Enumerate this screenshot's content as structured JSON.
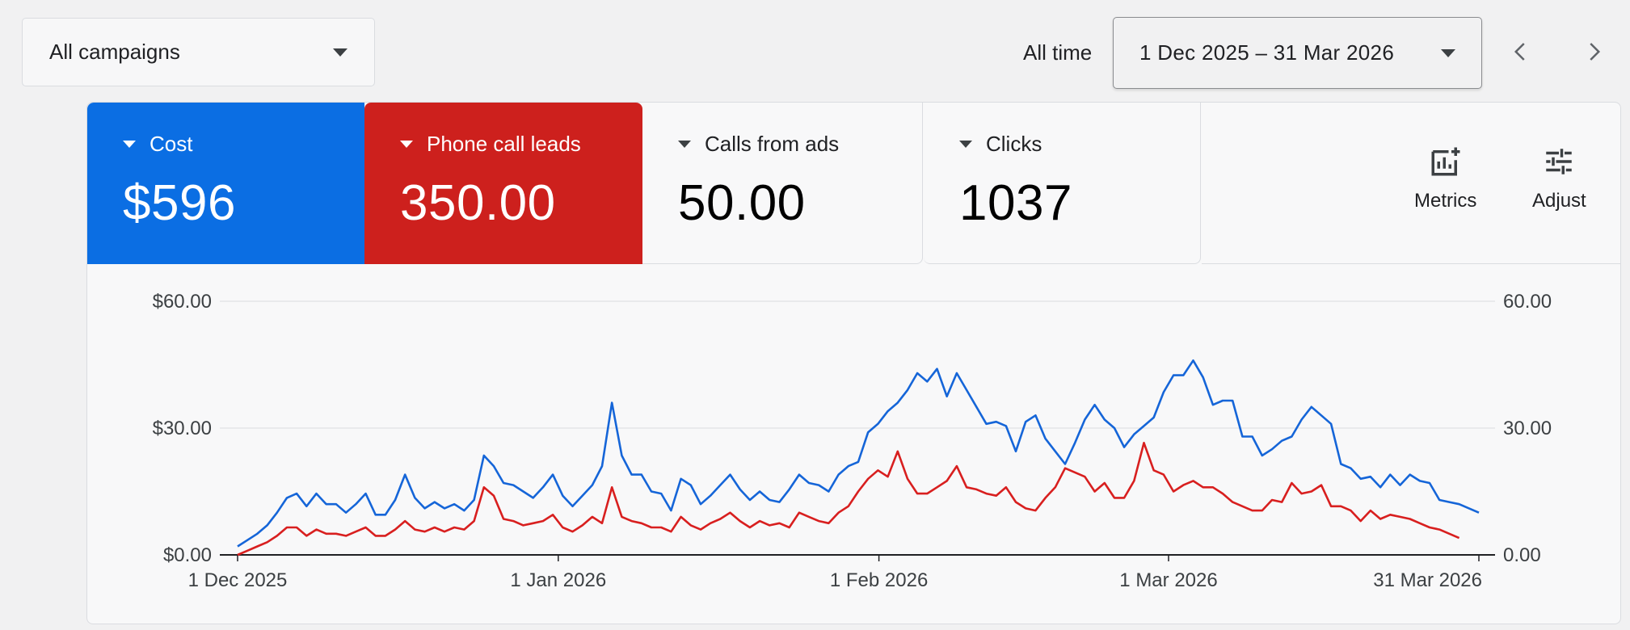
{
  "toolbar": {
    "campaign_filter": "All campaigns",
    "date_preset": "All time",
    "date_range": "1 Dec 2025 – 31 Mar 2026",
    "prev_icon": "chevron-left-icon",
    "next_icon": "chevron-right-icon"
  },
  "tiles": [
    {
      "label": "Cost",
      "value": "$596",
      "color": "#0b6ee3"
    },
    {
      "label": "Phone call leads",
      "value": "350.00",
      "color": "#cd201d"
    },
    {
      "label": "Calls from ads",
      "value": "50.00"
    },
    {
      "label": "Clicks",
      "value": "1037"
    }
  ],
  "tools": {
    "metrics_label": "Metrics",
    "metrics_icon": "add-chart-icon",
    "adjust_label": "Adjust",
    "adjust_icon": "tune-icon",
    "more_icon": "more-vert-icon"
  },
  "chart_data": {
    "type": "line",
    "x_labels": [
      "1 Dec 2025",
      "1 Jan 2026",
      "1 Feb 2026",
      "1 Mar 2026",
      "31 Mar 2026"
    ],
    "y_left_ticks": [
      "$0.00",
      "$30.00",
      "$60.00"
    ],
    "y_right_ticks": [
      "0.00",
      "30.00",
      "60.00"
    ],
    "ylim": [
      0,
      60
    ],
    "grid": true,
    "series": [
      {
        "color": "#1565d8",
        "values": [
          2,
          3.5,
          5,
          7,
          10,
          13.5,
          14.5,
          11.5,
          14.5,
          12,
          12,
          10,
          12,
          14.5,
          9.5,
          9.5,
          13,
          19,
          13.5,
          11,
          12.5,
          11,
          12,
          10.5,
          13,
          23.5,
          21,
          17,
          16.5,
          15,
          13.5,
          16,
          19,
          14,
          11.5,
          14,
          16.5,
          21,
          36,
          23.5,
          19,
          19,
          15,
          14.5,
          10.5,
          18,
          16.5,
          12,
          14,
          16.5,
          19,
          15.5,
          13,
          15,
          13,
          12.5,
          15.5,
          19,
          17,
          16.5,
          15,
          19,
          21,
          22,
          29,
          31,
          34,
          36,
          39,
          43,
          41,
          44,
          37.5,
          43,
          39,
          35,
          31,
          31.5,
          30.5,
          24.5,
          31.5,
          33,
          27.5,
          24.5,
          21.5,
          26.5,
          32,
          35.5,
          32,
          30,
          25.5,
          28.5,
          30.5,
          32.5,
          38.5,
          42.5,
          42.5,
          46,
          42,
          35.5,
          36.5,
          36.5,
          28,
          28,
          23.5,
          25,
          27,
          28,
          32,
          35,
          33,
          31,
          21.5,
          20.5,
          18,
          18.5,
          16,
          19,
          16.5,
          19,
          17.5,
          17,
          13,
          12.5,
          12,
          11,
          10
        ]
      },
      {
        "color": "#d81f1f",
        "values": [
          0,
          1,
          2,
          3,
          4.5,
          6.5,
          6.5,
          4.5,
          6,
          5,
          5,
          4.5,
          5.5,
          6.5,
          4.5,
          4.5,
          6,
          8,
          6,
          5.5,
          6.5,
          5.5,
          6.5,
          6,
          8,
          16,
          14,
          8.5,
          8,
          7,
          7.5,
          8,
          9.5,
          6.5,
          5.5,
          7,
          9,
          7.5,
          16,
          9,
          8,
          7.5,
          6.5,
          6.5,
          5.5,
          9,
          7,
          6,
          7.5,
          8.5,
          10,
          8,
          6.5,
          8,
          7,
          7.5,
          6.5,
          10,
          9,
          8,
          7.5,
          10,
          11.5,
          15,
          18,
          20,
          18.5,
          24.5,
          18,
          14.5,
          14.5,
          16,
          17.5,
          21,
          16,
          15.5,
          14.5,
          14,
          16,
          12.5,
          11,
          10.5,
          13.5,
          16,
          20.5,
          19.5,
          18.5,
          15,
          17,
          13.5,
          13.5,
          17.5,
          26.5,
          20,
          19,
          15,
          16.5,
          17.5,
          16,
          16,
          14.5,
          12.5,
          11.5,
          10.5,
          10.5,
          13,
          12.5,
          17,
          14.5,
          15,
          16.5,
          11.5,
          11.5,
          10.5,
          8,
          10.5,
          8.5,
          9.5,
          9,
          8.5,
          7.5,
          6.5,
          6,
          5,
          4
        ]
      }
    ]
  }
}
